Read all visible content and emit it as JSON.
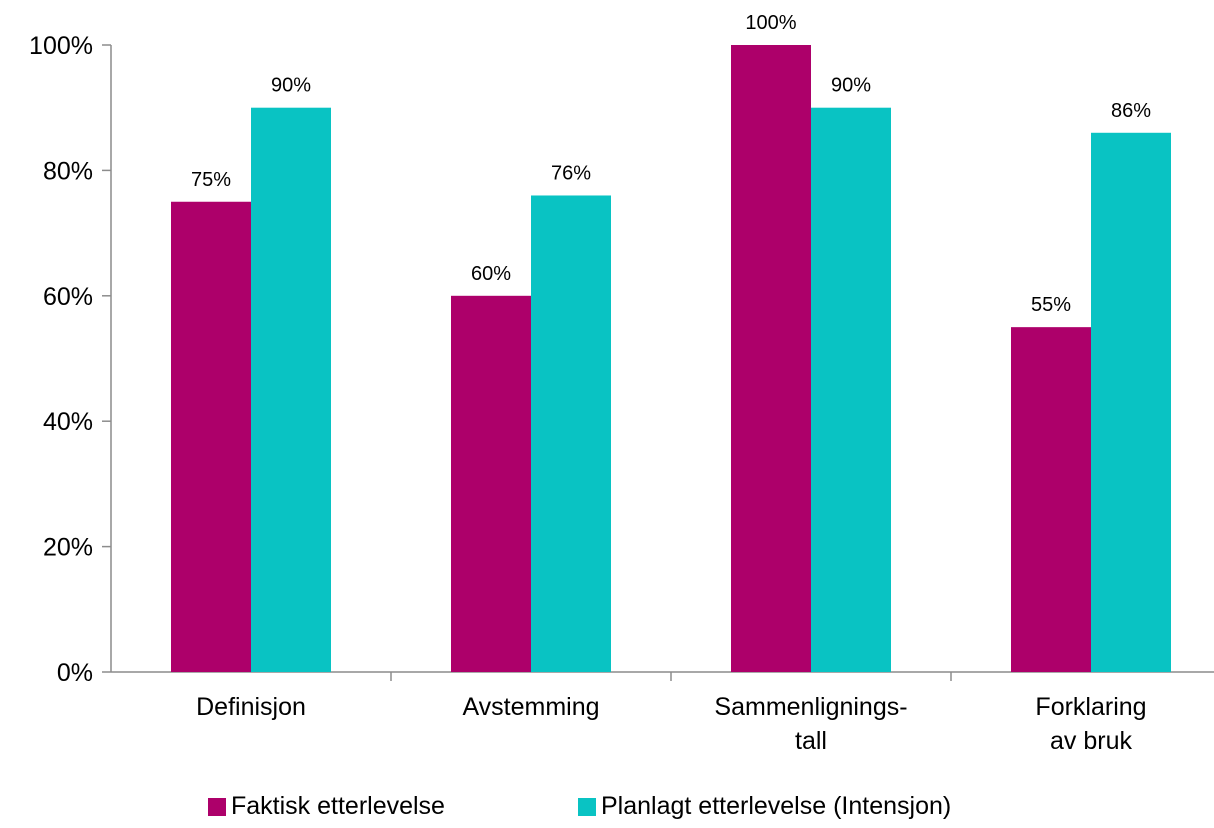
{
  "chart_data": {
    "type": "bar",
    "categories": [
      [
        "Definisjon"
      ],
      [
        "Avstemming"
      ],
      [
        "Sammenlignings-",
        "tall"
      ],
      [
        "Forklaring",
        "av bruk"
      ]
    ],
    "series": [
      {
        "name": "Faktisk etterlevelse",
        "values": [
          75,
          60,
          100,
          55
        ],
        "labels": [
          "75%",
          "60%",
          "100%",
          "55%"
        ],
        "color": "#ad006a"
      },
      {
        "name": "Planlagt etterlevelse (Intensjon)",
        "values": [
          90,
          76,
          90,
          86
        ],
        "labels": [
          "90%",
          "76%",
          "90%",
          "86%"
        ],
        "color": "#09c3c3"
      }
    ],
    "ylim": [
      0,
      100
    ],
    "yticks": [
      0,
      20,
      40,
      60,
      80,
      100
    ],
    "ytick_labels": [
      "0%",
      "20%",
      "40%",
      "60%",
      "80%",
      "100%"
    ],
    "grid": false,
    "legend_position": "bottom"
  },
  "colors": {
    "axis": "#8c8c8c"
  }
}
